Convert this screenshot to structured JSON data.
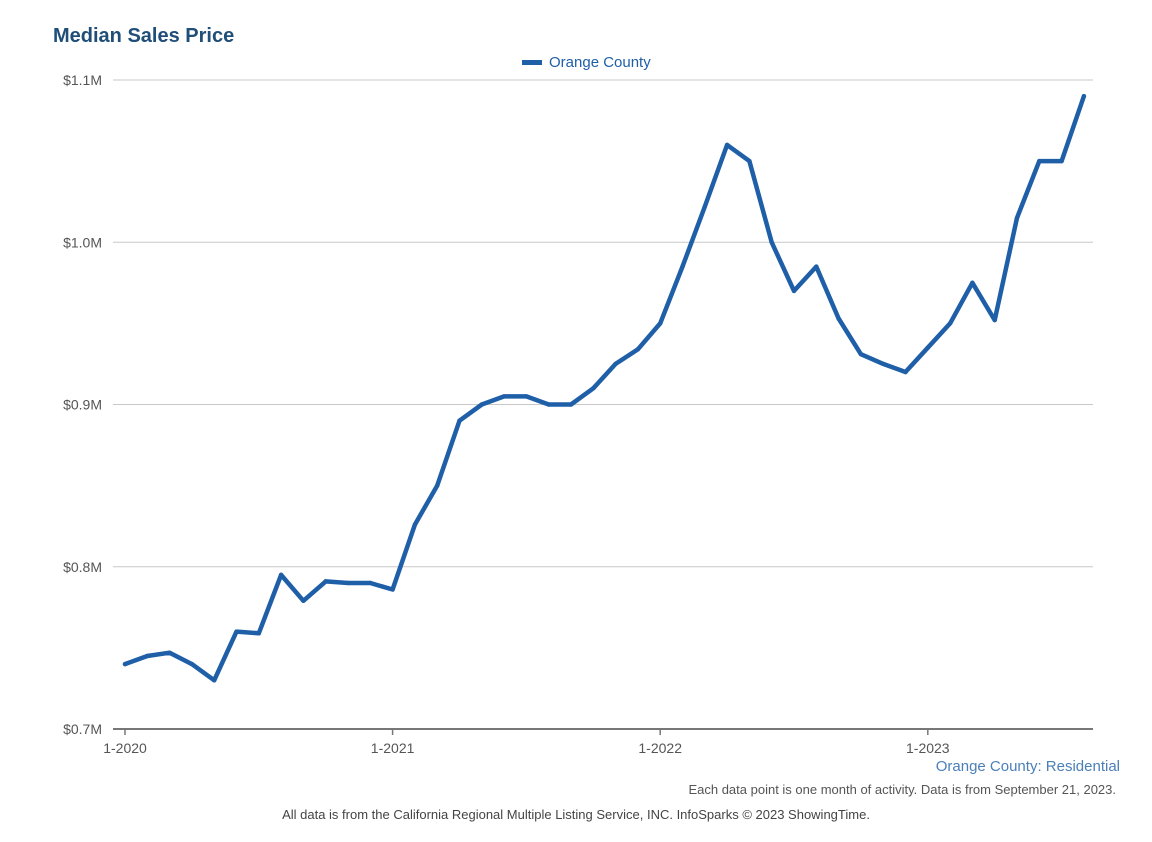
{
  "chart_data": {
    "type": "line",
    "title": "Median Sales Price",
    "legend": [
      "Orange County"
    ],
    "legend_position": "top-center",
    "grid": true,
    "line_color": "#1f5fa8",
    "ylim": [
      700000,
      1100000
    ],
    "y_ticks": [
      {
        "value": 700000,
        "label": "$0.7M"
      },
      {
        "value": 800000,
        "label": "$0.8M"
      },
      {
        "value": 900000,
        "label": "$0.9M"
      },
      {
        "value": 1000000,
        "label": "$1.0M"
      },
      {
        "value": 1100000,
        "label": "$1.1M"
      }
    ],
    "x_ticks": [
      "1-2020",
      "1-2021",
      "1-2022",
      "1-2023"
    ],
    "x": [
      "1-2020",
      "2-2020",
      "3-2020",
      "4-2020",
      "5-2020",
      "6-2020",
      "7-2020",
      "8-2020",
      "9-2020",
      "10-2020",
      "11-2020",
      "12-2020",
      "1-2021",
      "2-2021",
      "3-2021",
      "4-2021",
      "5-2021",
      "6-2021",
      "7-2021",
      "8-2021",
      "9-2021",
      "10-2021",
      "11-2021",
      "12-2021",
      "1-2022",
      "2-2022",
      "3-2022",
      "4-2022",
      "5-2022",
      "6-2022",
      "7-2022",
      "8-2022",
      "9-2022",
      "10-2022",
      "11-2022",
      "12-2022",
      "1-2023",
      "2-2023",
      "3-2023",
      "4-2023",
      "5-2023",
      "6-2023",
      "7-2023",
      "8-2023"
    ],
    "series": [
      {
        "name": "Orange County",
        "values": [
          740000,
          745000,
          747000,
          740000,
          730000,
          760000,
          759000,
          795000,
          779000,
          791000,
          790000,
          790000,
          786000,
          826000,
          850000,
          890000,
          900000,
          905000,
          905000,
          900000,
          900000,
          910000,
          925000,
          934000,
          950000,
          985000,
          1022000,
          1060000,
          1050000,
          1000000,
          970000,
          985000,
          953000,
          931000,
          925000,
          920000,
          935000,
          950000,
          975000,
          952000,
          1015000,
          1050000,
          1050000,
          1090000
        ]
      }
    ]
  },
  "source_label": "Orange County: Residential",
  "note": "Each data point is one month of activity. Data is from September 21, 2023.",
  "footer": "All data is from the California Regional Multiple Listing Service, INC. InfoSparks © 2023 ShowingTime."
}
